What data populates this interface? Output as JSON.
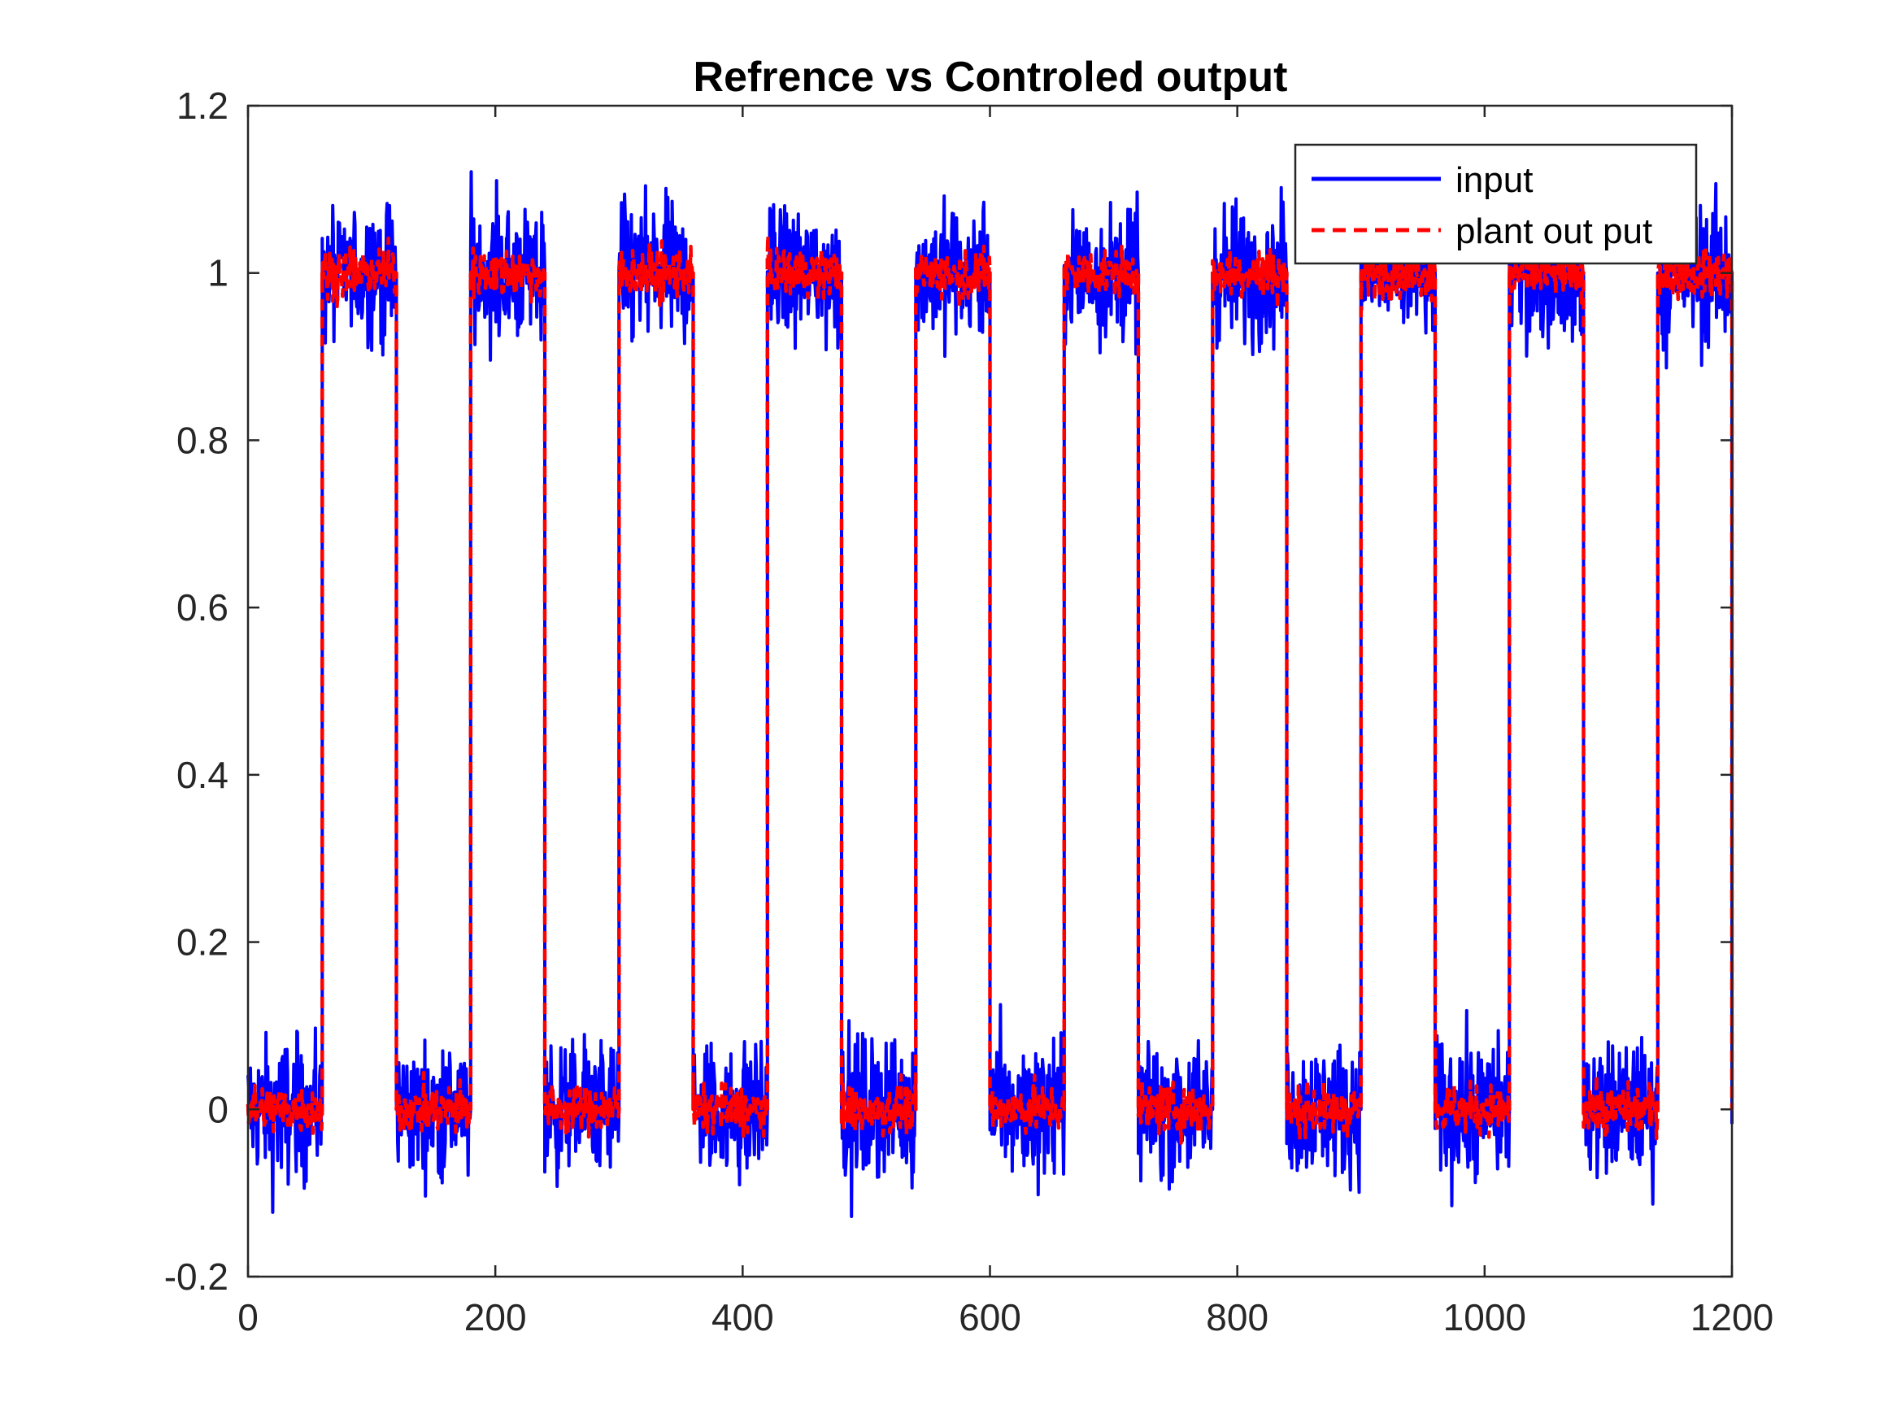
{
  "chart_data": {
    "type": "line",
    "title": "Refrence vs Controled output",
    "xlabel": "",
    "ylabel": "",
    "xlim": [
      0,
      1200
    ],
    "ylim": [
      -0.2,
      1.2
    ],
    "xticks": [
      0,
      200,
      400,
      600,
      800,
      1000,
      1200
    ],
    "xtick_labels": [
      "0",
      "200",
      "400",
      "600",
      "800",
      "1000",
      "1200"
    ],
    "yticks": [
      -0.2,
      0,
      0.2,
      0.4,
      0.6,
      0.8,
      1,
      1.2
    ],
    "ytick_labels": [
      "-0.2",
      "0",
      "0.2",
      "0.4",
      "0.6",
      "0.8",
      "1",
      "1.2"
    ],
    "grid": false,
    "legend": {
      "position": "top-right"
    },
    "square_wave": {
      "period": 120,
      "high_segments": [
        [
          60,
          120
        ],
        [
          180,
          240
        ],
        [
          300,
          360
        ],
        [
          420,
          480
        ],
        [
          540,
          600
        ],
        [
          660,
          720
        ],
        [
          780,
          840
        ],
        [
          900,
          960
        ],
        [
          1020,
          1080
        ],
        [
          1140,
          1200
        ]
      ],
      "low_level": 0,
      "high_level": 1
    },
    "series": [
      {
        "name": "input",
        "color": "#0000ff",
        "line_style": "solid",
        "noise_amplitude": 0.1
      },
      {
        "name": "plant out put",
        "color": "#ff0000",
        "line_style": "dashed",
        "noise_amplitude": 0.035
      }
    ]
  }
}
